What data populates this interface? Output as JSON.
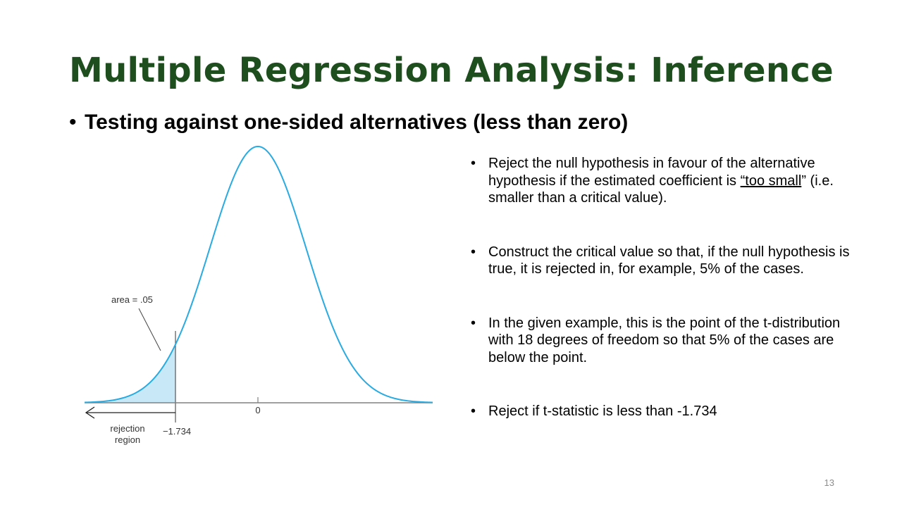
{
  "slide": {
    "title": "Multiple Regression Analysis: Inference",
    "subtitle": "Testing against one-sided alternatives (less than zero)",
    "page_number": "13"
  },
  "figure": {
    "area_label": "area = .05",
    "zero_label": "0",
    "critical_label": "−1.734",
    "rejection_line1": "rejection",
    "rejection_line2": "region",
    "critical_value": -1.734,
    "tail_area": 0.05,
    "colors": {
      "curve": "#29ABE2",
      "shade": "#C8E8F8",
      "axis": "#808080"
    }
  },
  "bullets": [
    {
      "before": "Reject the null hypothesis in favour of the alternative hypothesis if the estimated coefficient is ",
      "underlined": "“too small",
      "after": "” (i.e. smaller than a critical value)."
    },
    {
      "text": "Construct the critical value so that, if the null hypothesis is true, it is rejected in, for example, 5% of the cases."
    },
    {
      "text": "In the given example, this is the point of the t-distribution with 18 degrees of freedom so that 5% of the cases are below the point."
    },
    {
      "text": "Reject if t-statistic is less than -1.734"
    }
  ]
}
